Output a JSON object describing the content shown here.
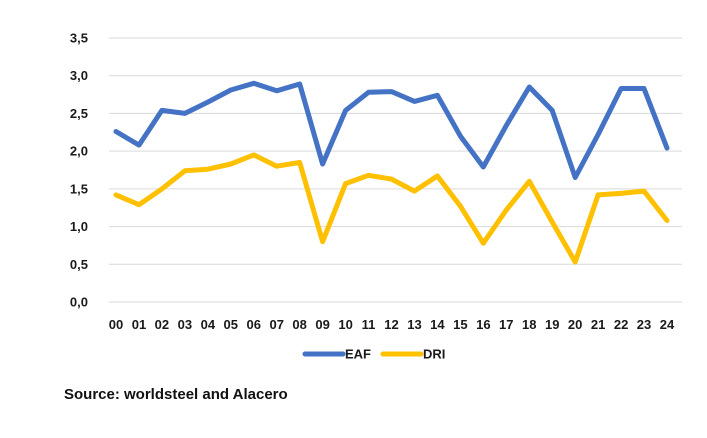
{
  "chart_data": {
    "type": "line",
    "categories": [
      "00",
      "01",
      "02",
      "03",
      "04",
      "05",
      "06",
      "07",
      "08",
      "09",
      "10",
      "11",
      "12",
      "13",
      "14",
      "15",
      "16",
      "17",
      "18",
      "19",
      "20",
      "21",
      "22",
      "23",
      "24"
    ],
    "series": [
      {
        "name": "EAF",
        "color": "#4472C4",
        "values": [
          2.26,
          2.08,
          2.54,
          2.5,
          2.65,
          2.81,
          2.9,
          2.8,
          2.89,
          1.83,
          2.54,
          2.78,
          2.79,
          2.66,
          2.74,
          2.2,
          1.79,
          2.34,
          2.85,
          2.54,
          1.65,
          2.22,
          2.83,
          2.83,
          2.04
        ]
      },
      {
        "name": "DRI",
        "color": "#FFC000",
        "values": [
          1.42,
          1.29,
          1.5,
          1.74,
          1.76,
          1.83,
          1.95,
          1.8,
          1.85,
          0.8,
          1.57,
          1.68,
          1.63,
          1.47,
          1.67,
          1.27,
          0.78,
          1.22,
          1.6,
          1.06,
          0.53,
          1.42,
          1.44,
          1.47,
          1.08
        ]
      }
    ],
    "y_ticks": [
      "0,0",
      "0,5",
      "1,0",
      "1,5",
      "2,0",
      "2,5",
      "3,0",
      "3,5"
    ],
    "ylim": [
      0,
      3.5
    ],
    "grid": true,
    "legend_position": "bottom",
    "gridline_color": "#d9d9d9"
  },
  "source": "Source: worldsteel and Alacero"
}
